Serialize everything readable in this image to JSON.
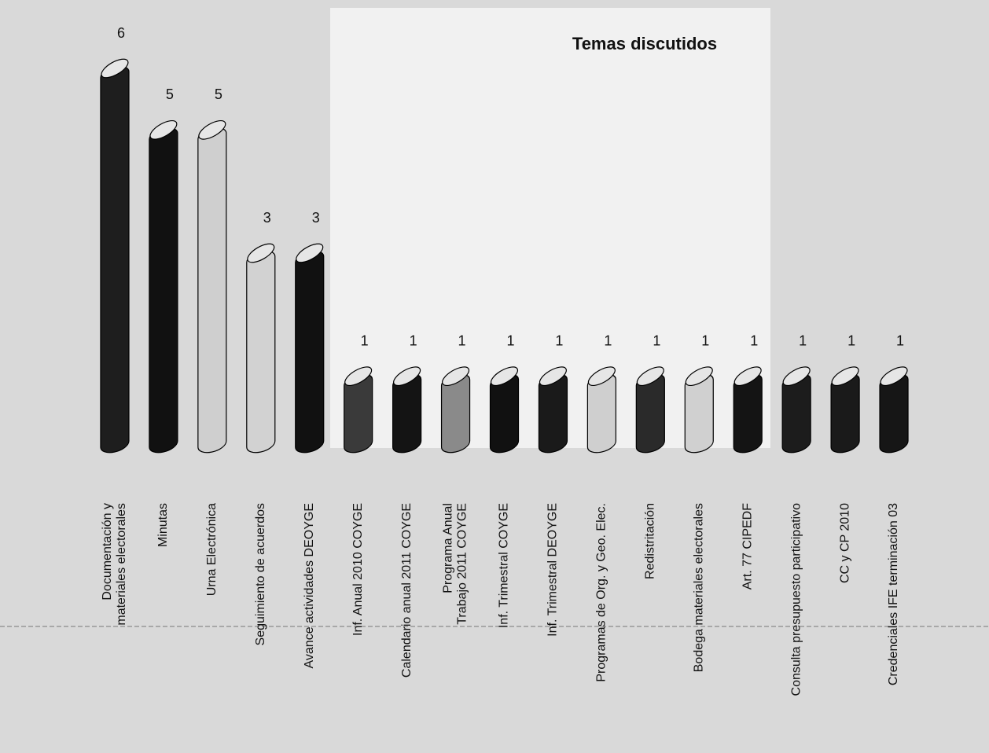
{
  "chart_data": {
    "type": "bar",
    "title": "Temas discutidos",
    "categories": [
      "Documentación y\nmateriales electorales",
      "Minutas",
      "Urna Electrónica",
      "Seguimiento de acuerdos",
      "Avance actividades DEOYGE",
      "Inf. Anual 2010 COYGE",
      "Calendario anual 2011 COYGE",
      "Programa Anual\nTrabajo 2011 COYGE",
      "Inf. Trimestral COYGE",
      "Inf. Trimestral DEOYGE",
      "Programas de Org. y Geo. Elec.",
      "Redistritación",
      "Bodega materiales electorales",
      "Art. 77 CIPEDF",
      "Consulta presupuesto participativo",
      "CC y CP 2010",
      "Credenciales IFE terminación 03"
    ],
    "values": [
      6,
      5,
      5,
      3,
      3,
      1,
      1,
      1,
      1,
      1,
      1,
      1,
      1,
      1,
      1,
      1,
      1
    ],
    "colors": [
      "#1e1e1e",
      "#111111",
      "#cfcfcf",
      "#d2d2d2",
      "#111111",
      "#3a3a3a",
      "#141414",
      "#8a8a8a",
      "#111111",
      "#1a1a1a",
      "#cfcfcf",
      "#2a2a2a",
      "#d0d0d0",
      "#141414",
      "#1c1c1c",
      "#1a1a1a",
      "#161616"
    ]
  }
}
